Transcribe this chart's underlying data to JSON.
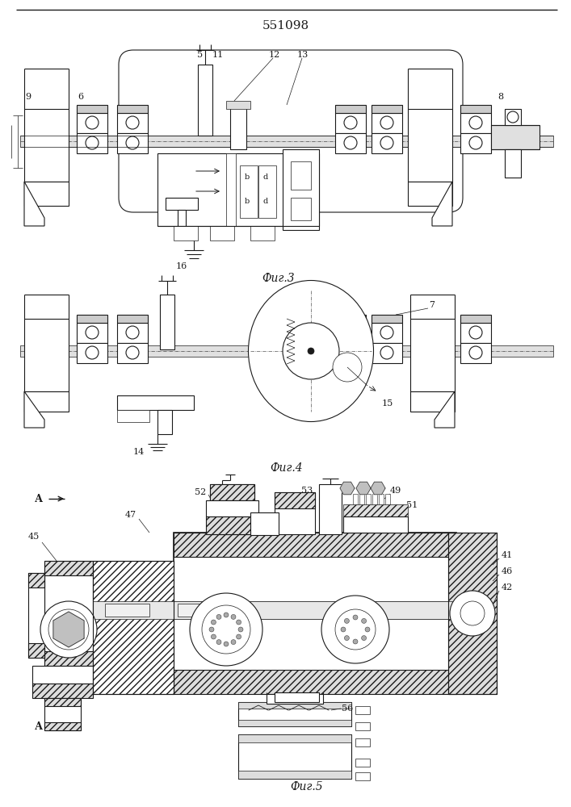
{
  "title": "551098",
  "fig3_caption": "Фиг.3",
  "fig4_caption": "Фиг.4",
  "fig5_caption": "Фиг.5",
  "bg_color": "#ffffff",
  "line_color": "#1a1a1a"
}
